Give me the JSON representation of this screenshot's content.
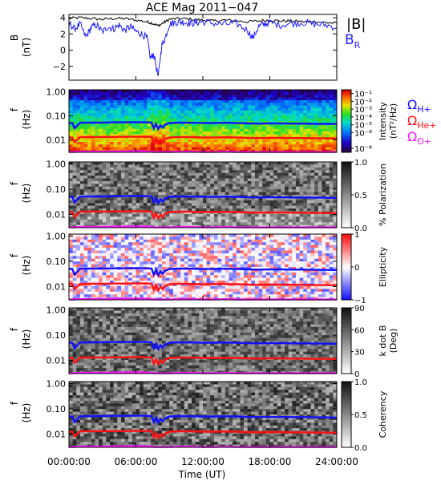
{
  "title": "ACE Mag 2011−047",
  "colors": {
    "b_total": "#000000",
    "b_r": "#2020ff",
    "h_plus": "#1010ff",
    "he_plus": "#ff1010",
    "o_plus": "#ff10ff"
  },
  "legend_b": {
    "b_total": "|B|",
    "b_r_main": "B",
    "b_r_sub": "R"
  },
  "legend_gyro": {
    "h_main": "Ω",
    "h_sub": "H+",
    "he_main": "Ω",
    "he_sub": "He+",
    "o_main": "Ω",
    "o_sub": "O+"
  },
  "xaxis": {
    "label": "Time (UT)",
    "range_hours": [
      0,
      24
    ],
    "ticks_hours": [
      0,
      6,
      12,
      18,
      24
    ],
    "tick_labels": [
      "00:00:00",
      "06:00:00",
      "12:00:00",
      "18:00:00",
      "24:00:00"
    ]
  },
  "freq_axis": {
    "ylabel_main": "f",
    "ylabel_unit": "(Hz)",
    "range_hz": [
      0.003,
      1.2
    ],
    "scale": "log",
    "ticks_hz": [
      1.0,
      0.1,
      0.01
    ],
    "tick_labels": [
      "1.00",
      "0.10",
      "0.01"
    ]
  },
  "chart_data": [
    {
      "type": "line",
      "name": "magnetic-field",
      "ylabel_main": "B",
      "ylabel_unit": "(nT)",
      "ylim": [
        -3.7,
        4.4
      ],
      "yticks": [
        4,
        2,
        0,
        -2
      ],
      "ytick_labels": [
        "4",
        "2",
        "0",
        "−2"
      ],
      "series": [
        {
          "name": "|B|",
          "x_hours": [
            0,
            1,
            2,
            3,
            4,
            5,
            6,
            7,
            7.5,
            8,
            8.5,
            9,
            10,
            11,
            12,
            13,
            14,
            15,
            16,
            17,
            18,
            19,
            20,
            21,
            22,
            23,
            24
          ],
          "values": [
            3.9,
            4.0,
            3.9,
            3.8,
            3.9,
            3.9,
            3.7,
            3.5,
            3.3,
            3.0,
            3.4,
            3.8,
            3.9,
            3.8,
            3.7,
            3.6,
            3.7,
            3.6,
            3.5,
            3.6,
            3.7,
            3.6,
            3.6,
            3.5,
            3.5,
            3.4,
            3.3
          ]
        },
        {
          "name": "B_R",
          "x_hours": [
            0,
            0.5,
            1,
            1.5,
            2,
            2.5,
            3,
            3.5,
            4,
            4.5,
            5,
            5.5,
            6,
            6.5,
            7,
            7.3,
            7.6,
            8,
            8.3,
            8.6,
            9,
            9.5,
            10,
            10.5,
            11,
            11.5,
            12,
            13,
            14,
            15,
            16,
            16.5,
            17,
            17.5,
            18,
            19,
            20,
            21,
            22,
            23,
            24
          ],
          "values": [
            3.4,
            2.6,
            3.2,
            1.6,
            2.8,
            3.1,
            2.2,
            2.9,
            2.6,
            3.1,
            2.4,
            2.9,
            2.3,
            2.0,
            1.5,
            -1.0,
            -0.5,
            -3.3,
            0.5,
            1.4,
            3.2,
            3.4,
            3.5,
            3.4,
            3.3,
            3.4,
            3.5,
            3.3,
            3.2,
            3.3,
            2.4,
            1.5,
            2.9,
            3.2,
            3.4,
            3.1,
            3.3,
            3.4,
            3.2,
            3.1,
            2.8
          ]
        }
      ]
    },
    {
      "type": "heatmap",
      "name": "intensity-spectrogram",
      "colorbar_label_main": "Intensity",
      "colorbar_label_unit": "(nT²/Hz)",
      "colorbar_scale": "log",
      "colorbar_range": [
        3e-09,
        0.3
      ],
      "colorbar_ticks": [
        0.1,
        0.01,
        0.001,
        0.0001,
        1e-05,
        1e-06,
        1e-08
      ],
      "colorbar_tick_labels": [
        "10⁻¹",
        "10⁻²",
        "10⁻³",
        "10⁻⁴",
        "10⁻⁵",
        "10⁻⁶",
        "10⁻⁸"
      ]
    },
    {
      "type": "heatmap",
      "name": "polarization-spectrogram",
      "colorbar_label_main": "% Polarization",
      "colorbar_range": [
        0,
        1
      ],
      "colorbar_ticks": [
        1.0,
        0.5,
        0.0
      ],
      "colorbar_tick_labels": [
        "1.0",
        "0.5",
        "0.0"
      ]
    },
    {
      "type": "heatmap",
      "name": "ellipticity-spectrogram",
      "colorbar_label_main": "Ellipticity",
      "colorbar_range": [
        -1,
        1
      ],
      "colorbar_ticks": [
        1,
        0,
        -1
      ],
      "colorbar_tick_labels": [
        "1",
        "0",
        "−1"
      ]
    },
    {
      "type": "heatmap",
      "name": "k-dot-b-spectrogram",
      "colorbar_label_main": "k dot B",
      "colorbar_label_unit": "(Deg)",
      "colorbar_range": [
        0,
        90
      ],
      "colorbar_ticks": [
        90,
        60,
        30,
        0
      ],
      "colorbar_tick_labels": [
        "90",
        "60",
        "30",
        "0"
      ]
    },
    {
      "type": "heatmap",
      "name": "coherency-spectrogram",
      "colorbar_label_main": "Coherency",
      "colorbar_range": [
        0,
        1
      ],
      "colorbar_ticks": [
        1.0,
        0.5,
        0.0
      ],
      "colorbar_tick_labels": [
        "1.0",
        "0.5",
        "0.0"
      ]
    }
  ],
  "gyrofrequencies": {
    "x_hours": [
      0,
      0.3,
      0.5,
      1,
      2,
      3,
      4,
      5,
      6,
      7,
      7.4,
      7.6,
      7.8,
      8.0,
      8.2,
      8.4,
      8.6,
      9,
      10,
      11,
      12,
      13,
      14,
      15,
      16,
      17,
      18,
      19,
      20,
      21,
      22,
      23,
      24
    ],
    "h_plus_hz": [
      0.05,
      0.05,
      0.03,
      0.051,
      0.052,
      0.052,
      0.053,
      0.053,
      0.054,
      0.053,
      0.052,
      0.03,
      0.045,
      0.028,
      0.04,
      0.032,
      0.042,
      0.05,
      0.052,
      0.051,
      0.05,
      0.05,
      0.051,
      0.05,
      0.048,
      0.047,
      0.048,
      0.048,
      0.047,
      0.047,
      0.046,
      0.046,
      0.045
    ],
    "he_plus_hz": [
      0.0125,
      0.0125,
      0.008,
      0.0128,
      0.013,
      0.013,
      0.0132,
      0.0132,
      0.0135,
      0.0133,
      0.013,
      0.0075,
      0.011,
      0.007,
      0.01,
      0.008,
      0.0105,
      0.0125,
      0.013,
      0.0128,
      0.0125,
      0.0125,
      0.0127,
      0.0125,
      0.012,
      0.0118,
      0.012,
      0.012,
      0.0118,
      0.0118,
      0.0115,
      0.0115,
      0.0113
    ],
    "o_plus_hz": [
      0.0031,
      0.0031,
      0.0031,
      0.0032,
      0.0032,
      0.0032,
      0.0033,
      0.0033,
      0.0034,
      0.0033,
      0.0032,
      0.0031,
      0.0031,
      0.0031,
      0.0031,
      0.0031,
      0.0031,
      0.0031,
      0.0032,
      0.0032,
      0.0031,
      0.0031,
      0.0032,
      0.0031,
      0.0031,
      0.0031,
      0.0031,
      0.0031,
      0.0031,
      0.0031,
      0.0031,
      0.0031,
      0.0031
    ]
  }
}
